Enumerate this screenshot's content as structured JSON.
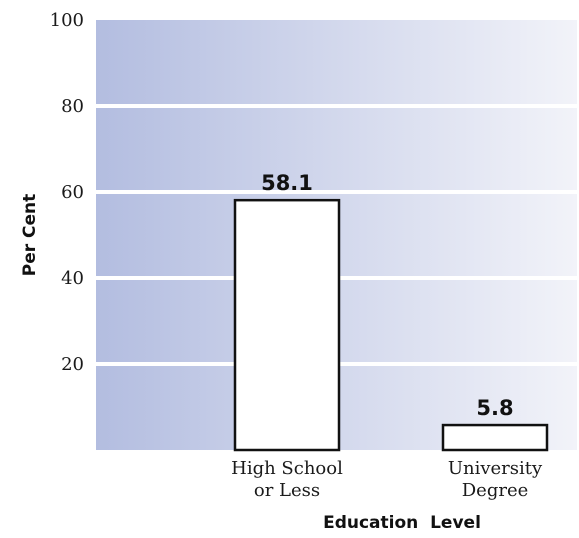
{
  "chart_data": {
    "type": "bar",
    "categories": [
      [
        "High School",
        "or Less"
      ],
      [
        "University",
        "Degree"
      ]
    ],
    "values": [
      58.1,
      5.8
    ],
    "data_labels": [
      "58.1",
      "5.8"
    ],
    "xlabel": "Education  Level",
    "ylabel": "Per Cent",
    "ylim": [
      0,
      100
    ],
    "yticks": [
      "20",
      "40",
      "60",
      "80",
      "100"
    ],
    "ytick_values": [
      20,
      40,
      60,
      80,
      100
    ],
    "grid": true,
    "colors": {
      "plot_bg_left": "#b3bde0",
      "plot_bg_right": "#f2f3f9",
      "gridline": "#ffffff",
      "bar_fill": "#ffffff",
      "bar_stroke": "#111111"
    }
  }
}
